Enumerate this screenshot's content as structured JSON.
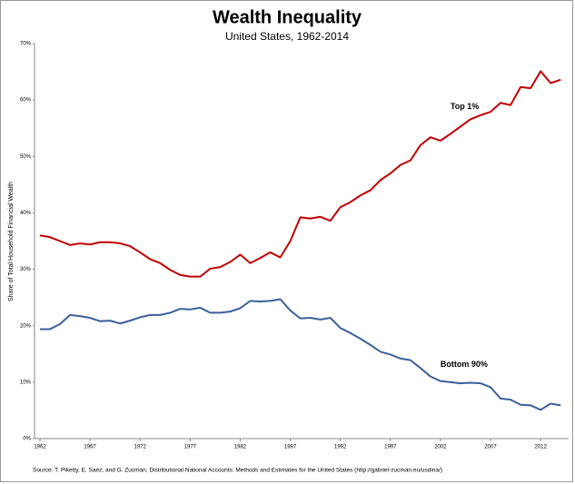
{
  "chart_data": {
    "type": "line",
    "title": "Wealth Inequality",
    "subtitle": "United States, 1962-2014",
    "y_label": "Share of Total Household Financial Wealth",
    "source": "Source: T. Piketty, E. Saez, and G. Zucman,  Distributional National Accounts: Methods and Estimates for the United States (http://gabriel-zucman.eu/usdina/)",
    "x": [
      1962,
      1963,
      1964,
      1965,
      1966,
      1967,
      1968,
      1969,
      1970,
      1971,
      1972,
      1973,
      1974,
      1975,
      1976,
      1977,
      1978,
      1979,
      1980,
      1981,
      1982,
      1983,
      1984,
      1985,
      1986,
      1987,
      1988,
      1989,
      1990,
      1991,
      1992,
      1993,
      1994,
      1995,
      1996,
      1997,
      1998,
      1999,
      2000,
      2001,
      2002,
      2003,
      2004,
      2005,
      2006,
      2007,
      2008,
      2009,
      2010,
      2011,
      2012,
      2013,
      2014
    ],
    "series": [
      {
        "name": "Top 1%",
        "color": "#c00000",
        "values": [
          36.0,
          35.7,
          35.0,
          34.3,
          34.6,
          34.4,
          34.8,
          34.8,
          34.6,
          34.1,
          33.0,
          31.8,
          31.1,
          29.9,
          29.0,
          28.7,
          28.7,
          30.1,
          30.4,
          31.3,
          32.6,
          31.1,
          32.0,
          33.0,
          32.1,
          35.0,
          39.2,
          39.0,
          39.3,
          38.6,
          41.0,
          41.9,
          43.1,
          44.0,
          45.8,
          47.0,
          48.5,
          49.3,
          52.0,
          53.4,
          52.8,
          54.0,
          55.3,
          56.6,
          57.3,
          57.9,
          59.5,
          59.1,
          62.3,
          62.1,
          65.1,
          63.0,
          63.6
        ]
      },
      {
        "name": "Bottom 90%",
        "color": "#3b5f9a",
        "values": [
          19.4,
          19.4,
          20.3,
          21.9,
          21.7,
          21.4,
          20.8,
          20.9,
          20.4,
          20.9,
          21.5,
          21.9,
          21.9,
          22.3,
          23.0,
          22.9,
          23.2,
          22.3,
          22.3,
          22.5,
          23.1,
          24.4,
          24.3,
          24.4,
          24.7,
          22.7,
          21.3,
          21.4,
          21.1,
          21.4,
          19.6,
          18.7,
          17.7,
          16.6,
          15.4,
          14.9,
          14.2,
          13.9,
          12.5,
          11.0,
          10.2,
          10.0,
          9.8,
          9.9,
          9.8,
          9.1,
          7.1,
          6.9,
          6.0,
          5.9,
          5.1,
          6.2,
          5.9
        ]
      }
    ],
    "xlim": [
      1962,
      2014.8
    ],
    "xticks": [
      1962,
      1967,
      1972,
      1977,
      1982,
      1987,
      1992,
      1997,
      2002,
      2007,
      2012
    ],
    "ylim": [
      0,
      70
    ],
    "yticks": [
      {
        "value": 0,
        "label": "0%"
      },
      {
        "value": 10,
        "label": "10%"
      },
      {
        "value": 20,
        "label": "20%"
      },
      {
        "value": 30,
        "label": "30%"
      },
      {
        "value": 40,
        "label": "40%"
      },
      {
        "value": 50,
        "label": "50%"
      },
      {
        "value": 60,
        "label": "60%"
      },
      {
        "value": 70,
        "label": "70%"
      }
    ],
    "grid": false
  }
}
